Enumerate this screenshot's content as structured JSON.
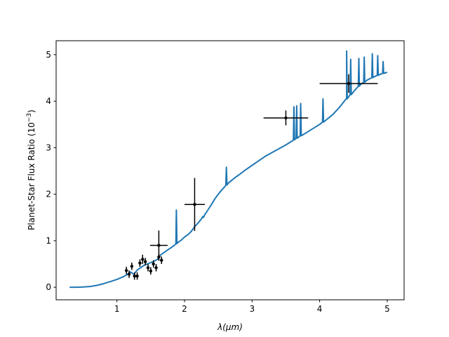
{
  "chart_data": {
    "type": "line",
    "xlabel": "λ(μm)",
    "ylabel_text": "Planet-Star Flux Ratio (10",
    "ylabel_sup": "−3",
    "ylabel_close": ")",
    "xlim": [
      0.1,
      5.25
    ],
    "ylim": [
      -0.27,
      5.3
    ],
    "xticks": [
      {
        "value": 1,
        "label": "1"
      },
      {
        "value": 2,
        "label": "2"
      },
      {
        "value": 3,
        "label": "3"
      },
      {
        "value": 4,
        "label": "4"
      },
      {
        "value": 5,
        "label": "5"
      }
    ],
    "yticks": [
      {
        "value": 0,
        "label": "0"
      },
      {
        "value": 1,
        "label": "1"
      },
      {
        "value": 2,
        "label": "2"
      },
      {
        "value": 3,
        "label": "3"
      },
      {
        "value": 4,
        "label": "4"
      },
      {
        "value": 5,
        "label": "5"
      }
    ],
    "grid": false,
    "model": {
      "color": "#1f77b4",
      "points": [
        [
          0.3,
          0.0
        ],
        [
          0.4,
          0.0
        ],
        [
          0.5,
          0.004
        ],
        [
          0.6,
          0.015
        ],
        [
          0.7,
          0.04
        ],
        [
          0.8,
          0.075
        ],
        [
          0.9,
          0.12
        ],
        [
          1.0,
          0.17
        ],
        [
          1.1,
          0.23
        ],
        [
          1.15,
          0.27
        ],
        [
          1.2,
          0.33
        ],
        [
          1.25,
          0.28
        ],
        [
          1.3,
          0.37
        ],
        [
          1.35,
          0.42
        ],
        [
          1.4,
          0.47
        ],
        [
          1.45,
          0.5
        ],
        [
          1.5,
          0.53
        ],
        [
          1.55,
          0.56
        ],
        [
          1.6,
          0.6
        ],
        [
          1.65,
          0.7
        ],
        [
          1.7,
          0.75
        ],
        [
          1.75,
          0.8
        ],
        [
          1.8,
          0.85
        ],
        [
          1.85,
          0.9
        ],
        [
          1.9,
          0.96
        ],
        [
          1.95,
          1.01
        ],
        [
          2.0,
          1.08
        ],
        [
          2.05,
          1.13
        ],
        [
          2.1,
          1.2
        ],
        [
          2.15,
          1.3
        ],
        [
          2.2,
          1.38
        ],
        [
          2.25,
          1.47
        ],
        [
          2.3,
          1.56
        ],
        [
          2.35,
          1.67
        ],
        [
          2.4,
          1.78
        ],
        [
          2.45,
          1.9
        ],
        [
          2.5,
          2.0
        ],
        [
          2.55,
          2.09
        ],
        [
          2.6,
          2.17
        ],
        [
          2.65,
          2.24
        ],
        [
          2.7,
          2.3
        ],
        [
          2.75,
          2.36
        ],
        [
          2.8,
          2.41
        ],
        [
          2.9,
          2.52
        ],
        [
          3.0,
          2.62
        ],
        [
          3.1,
          2.72
        ],
        [
          3.2,
          2.82
        ],
        [
          3.3,
          2.9
        ],
        [
          3.4,
          2.98
        ],
        [
          3.5,
          3.06
        ],
        [
          3.6,
          3.15
        ],
        [
          3.7,
          3.24
        ],
        [
          3.8,
          3.32
        ],
        [
          3.9,
          3.41
        ],
        [
          4.0,
          3.5
        ],
        [
          4.1,
          3.6
        ],
        [
          4.2,
          3.72
        ],
        [
          4.3,
          3.88
        ],
        [
          4.4,
          4.05
        ],
        [
          4.5,
          4.2
        ],
        [
          4.6,
          4.35
        ],
        [
          4.7,
          4.45
        ],
        [
          4.8,
          4.52
        ],
        [
          4.9,
          4.58
        ],
        [
          5.0,
          4.62
        ]
      ],
      "spikes": [
        [
          1.88,
          1.66
        ],
        [
          2.28,
          1.5
        ],
        [
          2.62,
          2.58
        ],
        [
          3.62,
          3.88
        ],
        [
          3.66,
          3.9
        ],
        [
          3.72,
          3.95
        ],
        [
          4.05,
          4.05
        ],
        [
          4.4,
          5.08
        ],
        [
          4.46,
          4.9
        ],
        [
          4.58,
          4.92
        ],
        [
          4.66,
          4.95
        ],
        [
          4.78,
          5.02
        ],
        [
          4.86,
          4.98
        ],
        [
          4.94,
          4.85
        ]
      ]
    },
    "observations": {
      "color": "#000000",
      "points": [
        {
          "x": 1.14,
          "y": 0.36,
          "xerr": 0.02,
          "yerr": 0.08
        },
        {
          "x": 1.18,
          "y": 0.28,
          "xerr": 0.02,
          "yerr": 0.08
        },
        {
          "x": 1.22,
          "y": 0.45,
          "xerr": 0.02,
          "yerr": 0.08
        },
        {
          "x": 1.26,
          "y": 0.24,
          "xerr": 0.02,
          "yerr": 0.08
        },
        {
          "x": 1.3,
          "y": 0.24,
          "xerr": 0.02,
          "yerr": 0.08
        },
        {
          "x": 1.34,
          "y": 0.52,
          "xerr": 0.02,
          "yerr": 0.08
        },
        {
          "x": 1.38,
          "y": 0.6,
          "xerr": 0.02,
          "yerr": 0.1
        },
        {
          "x": 1.42,
          "y": 0.55,
          "xerr": 0.02,
          "yerr": 0.08
        },
        {
          "x": 1.46,
          "y": 0.42,
          "xerr": 0.02,
          "yerr": 0.08
        },
        {
          "x": 1.5,
          "y": 0.35,
          "xerr": 0.02,
          "yerr": 0.08
        },
        {
          "x": 1.54,
          "y": 0.5,
          "xerr": 0.02,
          "yerr": 0.08
        },
        {
          "x": 1.58,
          "y": 0.42,
          "xerr": 0.02,
          "yerr": 0.08
        },
        {
          "x": 1.62,
          "y": 0.65,
          "xerr": 0.02,
          "yerr": 0.08
        },
        {
          "x": 1.66,
          "y": 0.58,
          "xerr": 0.02,
          "yerr": 0.08
        },
        {
          "x": 1.62,
          "y": 0.9,
          "xerr": 0.13,
          "yerr": 0.32
        },
        {
          "x": 2.15,
          "y": 1.78,
          "xerr": 0.15,
          "yerr": 0.57
        },
        {
          "x": 3.5,
          "y": 3.64,
          "xerr": 0.33,
          "yerr": 0.16
        },
        {
          "x": 4.43,
          "y": 4.38,
          "xerr": 0.43,
          "yerr": 0.2
        }
      ]
    }
  }
}
